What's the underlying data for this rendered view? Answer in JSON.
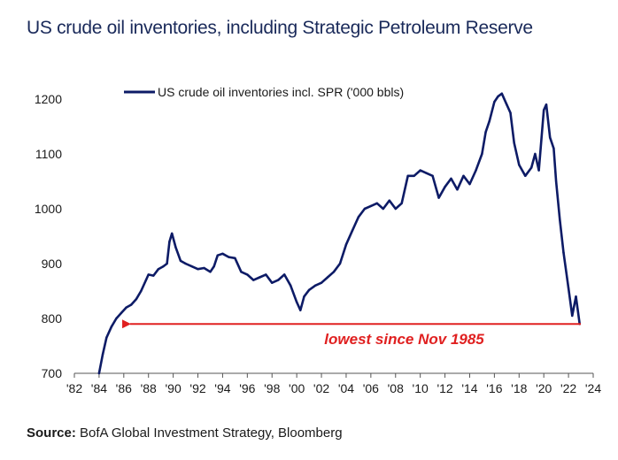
{
  "header": {
    "title": "US crude oil inventories, including Strategic Petroleum Reserve"
  },
  "footer": {
    "source_label": "Source:",
    "source_text": "BofA Global Investment Strategy, Bloomberg"
  },
  "colors": {
    "series": "#0d1b66",
    "annotation": "#e02020",
    "axis": "#555555",
    "title": "#1a2a5a"
  },
  "chart_data": {
    "type": "line",
    "title": "US crude oil inventories, including Strategic Petroleum Reserve",
    "xlabel": "",
    "ylabel": "",
    "xlim": [
      1982,
      2024
    ],
    "ylim": [
      700,
      1200
    ],
    "x_ticks": [
      1982,
      1984,
      1986,
      1988,
      1990,
      1992,
      1994,
      1996,
      1998,
      2000,
      2002,
      2004,
      2006,
      2008,
      2010,
      2012,
      2014,
      2016,
      2018,
      2020,
      2022,
      2024
    ],
    "x_tick_labels": [
      "'82",
      "'84",
      "'86",
      "'88",
      "'90",
      "'92",
      "'94",
      "'96",
      "'98",
      "'00",
      "'02",
      "'04",
      "'06",
      "'08",
      "'10",
      "'12",
      "'14",
      "'16",
      "'18",
      "'20",
      "'22",
      "'24"
    ],
    "y_ticks": [
      700,
      800,
      900,
      1000,
      1100,
      1200
    ],
    "y_tick_labels": [
      "700",
      "800",
      "900",
      "1000",
      "1100",
      "1200"
    ],
    "legend": {
      "position": "top-left",
      "entries": [
        "US crude oil inventories incl. SPR ('000 bbls)"
      ]
    },
    "series": [
      {
        "name": "US crude oil inventories incl. SPR ('000 bbls)",
        "x": [
          1984.0,
          1984.3,
          1984.6,
          1985.0,
          1985.4,
          1985.8,
          1986.2,
          1986.6,
          1987.0,
          1987.4,
          1987.8,
          1988.0,
          1988.4,
          1988.8,
          1989.2,
          1989.5,
          1989.7,
          1989.9,
          1990.2,
          1990.6,
          1991.0,
          1991.5,
          1992.0,
          1992.5,
          1993.0,
          1993.3,
          1993.6,
          1994.0,
          1994.5,
          1995.0,
          1995.5,
          1996.0,
          1996.5,
          1997.0,
          1997.5,
          1998.0,
          1998.5,
          1999.0,
          1999.5,
          2000.0,
          2000.3,
          2000.6,
          2001.0,
          2001.5,
          2002.0,
          2002.5,
          2003.0,
          2003.5,
          2004.0,
          2004.5,
          2005.0,
          2005.5,
          2006.0,
          2006.5,
          2007.0,
          2007.5,
          2008.0,
          2008.5,
          2009.0,
          2009.5,
          2010.0,
          2010.5,
          2011.0,
          2011.5,
          2012.0,
          2012.5,
          2013.0,
          2013.5,
          2014.0,
          2014.5,
          2015.0,
          2015.3,
          2015.6,
          2016.0,
          2016.3,
          2016.6,
          2017.0,
          2017.3,
          2017.6,
          2018.0,
          2018.5,
          2019.0,
          2019.3,
          2019.6,
          2020.0,
          2020.2,
          2020.5,
          2020.8,
          2021.0,
          2021.3,
          2021.6,
          2022.0,
          2022.3,
          2022.6,
          2022.9
        ],
        "values": [
          700,
          735,
          765,
          785,
          800,
          810,
          820,
          825,
          835,
          850,
          870,
          880,
          878,
          890,
          895,
          900,
          940,
          955,
          930,
          905,
          900,
          895,
          890,
          892,
          885,
          895,
          915,
          918,
          912,
          910,
          885,
          880,
          870,
          875,
          880,
          865,
          870,
          880,
          860,
          830,
          815,
          840,
          852,
          860,
          865,
          875,
          885,
          900,
          935,
          960,
          985,
          1000,
          1005,
          1010,
          1000,
          1015,
          1000,
          1010,
          1060,
          1060,
          1070,
          1065,
          1060,
          1020,
          1040,
          1055,
          1035,
          1060,
          1045,
          1070,
          1100,
          1140,
          1160,
          1195,
          1205,
          1210,
          1190,
          1175,
          1120,
          1080,
          1060,
          1075,
          1100,
          1070,
          1180,
          1190,
          1130,
          1110,
          1050,
          980,
          920,
          855,
          805,
          840,
          790
        ]
      }
    ],
    "annotations": [
      {
        "text": "lowest since Nov 1985",
        "arrow_from_x": 2023.0,
        "arrow_to_x": 1985.8,
        "y": 790
      }
    ]
  }
}
